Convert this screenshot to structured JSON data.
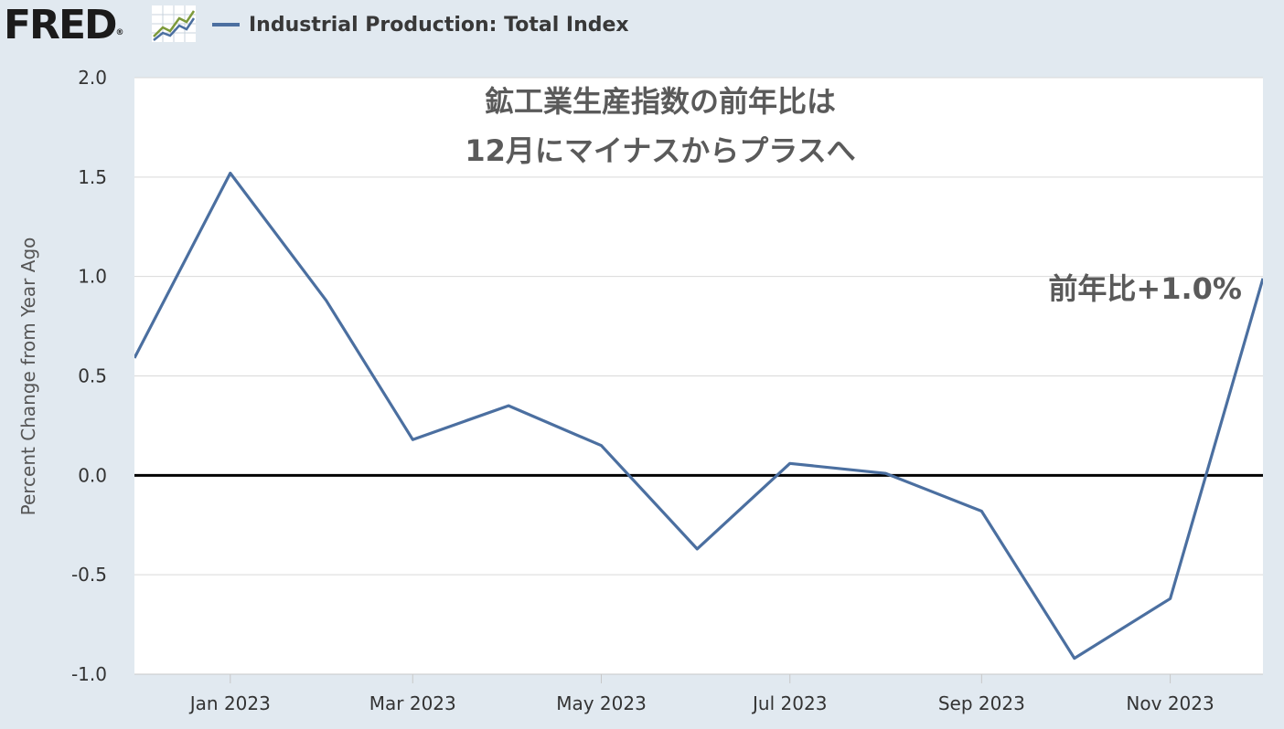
{
  "header": {
    "logo_text": "FRED",
    "logo_reg": "®",
    "legend_label": "Industrial Production: Total Index",
    "series_color": "#4b6fa0",
    "logo_icon": "line-chart-icon"
  },
  "chart_data": {
    "type": "line",
    "series": [
      {
        "name": "Industrial Production: Total Index",
        "dates": [
          "2022-12-01",
          "2023-01-01",
          "2023-02-01",
          "2023-03-01",
          "2023-04-01",
          "2023-05-01",
          "2023-06-01",
          "2023-07-01",
          "2023-08-01",
          "2023-09-01",
          "2023-10-01",
          "2023-11-01",
          "2023-12-01"
        ],
        "values": [
          0.59,
          1.52,
          0.88,
          0.18,
          0.35,
          0.15,
          -0.37,
          0.06,
          0.01,
          -0.18,
          -0.92,
          -0.62,
          0.99
        ],
        "color": "#4b6fa0"
      }
    ],
    "ylabel": "Percent Change from Year Ago",
    "ylim": [
      -1.0,
      2.0
    ],
    "yticks": [
      "2.0",
      "1.5",
      "1.0",
      "0.5",
      "0.0",
      "-0.5",
      "-1.0"
    ],
    "xticks": [
      {
        "date": "2023-01-01",
        "label": "Jan 2023"
      },
      {
        "date": "2023-03-01",
        "label": "Mar 2023"
      },
      {
        "date": "2023-05-01",
        "label": "May 2023"
      },
      {
        "date": "2023-07-01",
        "label": "Jul 2023"
      },
      {
        "date": "2023-09-01",
        "label": "Sep 2023"
      },
      {
        "date": "2023-11-01",
        "label": "Nov 2023"
      }
    ],
    "zero_line": true,
    "grid": true,
    "annotations": {
      "title_line1": "鉱工業生産指数の前年比は",
      "title_line2": "12月にマイナスからプラスへ",
      "value_label": "前年比+1.0%"
    }
  }
}
